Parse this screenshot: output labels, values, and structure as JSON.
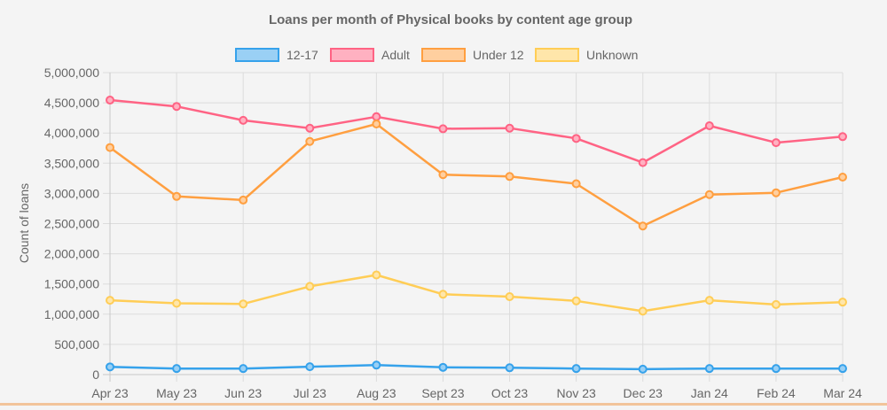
{
  "chart_data": {
    "type": "line",
    "title": "Loans per month of Physical books by content age group",
    "xlabel": "",
    "ylabel": "Count of loans",
    "ylim": [
      0,
      5000000
    ],
    "y_ticks": [
      0,
      500000,
      1000000,
      1500000,
      2000000,
      2500000,
      3000000,
      3500000,
      4000000,
      4500000,
      5000000
    ],
    "y_tick_labels": [
      "0",
      "500,000",
      "1,000,000",
      "1,500,000",
      "2,000,000",
      "2,500,000",
      "3,000,000",
      "3,500,000",
      "4,000,000",
      "4,500,000",
      "5,000,000"
    ],
    "grid": true,
    "legend_position": "top",
    "categories": [
      "Apr 23",
      "May 23",
      "Jun 23",
      "Jul 23",
      "Aug 23",
      "Sept 23",
      "Oct 23",
      "Nov 23",
      "Dec 23",
      "Jan 24",
      "Feb 24",
      "Mar 24"
    ],
    "series": [
      {
        "name": "12-17",
        "color": "#36a2eb",
        "fill": "#9ad0f5",
        "values": [
          127000,
          100000,
          100000,
          130000,
          157000,
          120000,
          113000,
          100000,
          90000,
          100000,
          100000,
          100000
        ]
      },
      {
        "name": "Adult",
        "color": "#ff6384",
        "fill": "#ffb1c1",
        "values": [
          4545000,
          4440000,
          4210000,
          4080000,
          4270000,
          4070000,
          4080000,
          3910000,
          3510000,
          4120000,
          3840000,
          3940000
        ]
      },
      {
        "name": "Under 12",
        "color": "#ff9f40",
        "fill": "#ffcf9f",
        "values": [
          3760000,
          2950000,
          2890000,
          3860000,
          4150000,
          3310000,
          3280000,
          3160000,
          2460000,
          2980000,
          3010000,
          3270000
        ]
      },
      {
        "name": "Unknown",
        "color": "#ffcd56",
        "fill": "#ffe6aa",
        "values": [
          1230000,
          1180000,
          1170000,
          1460000,
          1650000,
          1330000,
          1290000,
          1220000,
          1050000,
          1230000,
          1160000,
          1200000
        ]
      }
    ]
  }
}
